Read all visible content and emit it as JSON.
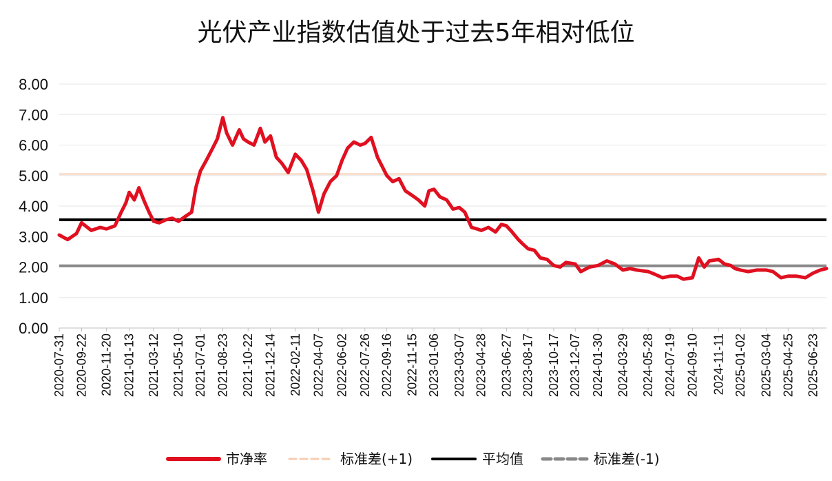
{
  "chart_data": {
    "type": "line",
    "title": "光伏产业指数估值处于过去5年相对低位",
    "xlabel": "",
    "ylabel": "",
    "ylim": [
      0,
      8
    ],
    "y_ticks": [
      "0.00",
      "1.00",
      "2.00",
      "3.00",
      "4.00",
      "5.00",
      "6.00",
      "7.00",
      "8.00"
    ],
    "x_tick_labels": [
      "2020-07-31",
      "2020-09-22",
      "2020-11-20",
      "2021-01-13",
      "2021-03-12",
      "2021-05-10",
      "2021-07-01",
      "2021-08-23",
      "2021-10-22",
      "2021-12-14",
      "2022-02-11",
      "2022-04-07",
      "2022-06-02",
      "2022-07-26",
      "2022-09-16",
      "2022-11-15",
      "2023-01-06",
      "2023-03-07",
      "2023-04-28",
      "2023-06-27",
      "2023-08-17",
      "2023-10-17",
      "2023-12-07",
      "2024-01-30",
      "2024-03-29",
      "2024-05-28",
      "2024-07-19",
      "2024-09-10",
      "2024-11-11",
      "2025-01-02",
      "2025-03-04",
      "2025-04-25",
      "2025-06-23"
    ],
    "grid": true,
    "legend_position": "bottom",
    "series": [
      {
        "name": "市净率",
        "color": "#e01020",
        "x": [
          "2020-07-31",
          "2020-08-20",
          "2020-09-10",
          "2020-09-22",
          "2020-10-15",
          "2020-11-05",
          "2020-11-20",
          "2020-12-10",
          "2020-12-25",
          "2021-01-05",
          "2021-01-13",
          "2021-01-25",
          "2021-02-05",
          "2021-02-18",
          "2021-03-01",
          "2021-03-12",
          "2021-03-25",
          "2021-04-10",
          "2021-04-25",
          "2021-05-10",
          "2021-05-25",
          "2021-06-10",
          "2021-06-20",
          "2021-07-01",
          "2021-07-15",
          "2021-07-30",
          "2021-08-10",
          "2021-08-23",
          "2021-09-01",
          "2021-09-15",
          "2021-10-01",
          "2021-10-11",
          "2021-10-22",
          "2021-11-05",
          "2021-11-20",
          "2021-12-01",
          "2021-12-14",
          "2021-12-28",
          "2022-01-10",
          "2022-01-25",
          "2022-02-11",
          "2022-02-25",
          "2022-03-10",
          "2022-03-25",
          "2022-04-07",
          "2022-04-20",
          "2022-05-05",
          "2022-05-20",
          "2022-06-02",
          "2022-06-15",
          "2022-06-30",
          "2022-07-15",
          "2022-07-26",
          "2022-08-10",
          "2022-08-25",
          "2022-09-05",
          "2022-09-16",
          "2022-09-30",
          "2022-10-15",
          "2022-10-30",
          "2022-11-15",
          "2022-11-30",
          "2022-12-15",
          "2022-12-25",
          "2023-01-06",
          "2023-01-20",
          "2023-02-05",
          "2023-02-20",
          "2023-03-07",
          "2023-03-20",
          "2023-04-05",
          "2023-04-18",
          "2023-04-28",
          "2023-05-15",
          "2023-06-01",
          "2023-06-15",
          "2023-06-27",
          "2023-07-10",
          "2023-07-25",
          "2023-08-05",
          "2023-08-17",
          "2023-09-01",
          "2023-09-15",
          "2023-10-01",
          "2023-10-17",
          "2023-11-01",
          "2023-11-15",
          "2023-12-07",
          "2023-12-20",
          "2024-01-10",
          "2024-01-30",
          "2024-02-20",
          "2024-03-10",
          "2024-03-29",
          "2024-04-15",
          "2024-05-01",
          "2024-05-28",
          "2024-06-15",
          "2024-07-01",
          "2024-07-19",
          "2024-08-05",
          "2024-08-20",
          "2024-09-10",
          "2024-09-25",
          "2024-10-08",
          "2024-10-20",
          "2024-11-11",
          "2024-11-25",
          "2024-12-10",
          "2024-12-20",
          "2025-01-02",
          "2025-01-20",
          "2025-02-10",
          "2025-03-04",
          "2025-03-20",
          "2025-04-08",
          "2025-04-25",
          "2025-05-15",
          "2025-06-05",
          "2025-06-23",
          "2025-07-10",
          "2025-07-25"
        ],
        "values": [
          3.05,
          2.9,
          3.1,
          3.45,
          3.2,
          3.3,
          3.25,
          3.35,
          3.8,
          4.1,
          4.45,
          4.2,
          4.6,
          4.15,
          3.8,
          3.5,
          3.45,
          3.55,
          3.6,
          3.5,
          3.65,
          3.8,
          4.6,
          5.15,
          5.5,
          5.9,
          6.2,
          6.9,
          6.4,
          6.0,
          6.5,
          6.2,
          6.1,
          6.0,
          6.55,
          6.1,
          6.3,
          5.6,
          5.4,
          5.1,
          5.7,
          5.5,
          5.2,
          4.5,
          3.8,
          4.4,
          4.8,
          5.0,
          5.5,
          5.9,
          6.1,
          6.0,
          6.05,
          6.25,
          5.6,
          5.3,
          5.0,
          4.8,
          4.9,
          4.5,
          4.35,
          4.2,
          4.0,
          4.5,
          4.55,
          4.3,
          4.2,
          3.9,
          3.95,
          3.8,
          3.3,
          3.25,
          3.2,
          3.3,
          3.15,
          3.4,
          3.35,
          3.15,
          2.9,
          2.75,
          2.6,
          2.55,
          2.3,
          2.25,
          2.05,
          2.0,
          2.15,
          2.1,
          1.85,
          2.0,
          2.05,
          2.2,
          2.1,
          1.9,
          1.95,
          1.9,
          1.85,
          1.75,
          1.65,
          1.7,
          1.7,
          1.6,
          1.65,
          2.3,
          2.0,
          2.2,
          2.25,
          2.1,
          2.05,
          1.95,
          1.9,
          1.85,
          1.9,
          1.9,
          1.85,
          1.65,
          1.7,
          1.7,
          1.65,
          1.8,
          1.9,
          1.95
        ]
      },
      {
        "name": "标准差(+1)",
        "color": "#f5cdb0",
        "value": 5.05
      },
      {
        "name": "平均值",
        "color": "#000000",
        "value": 3.55
      },
      {
        "name": "标准差(-1)",
        "color": "#888888",
        "value": 2.04
      }
    ]
  }
}
